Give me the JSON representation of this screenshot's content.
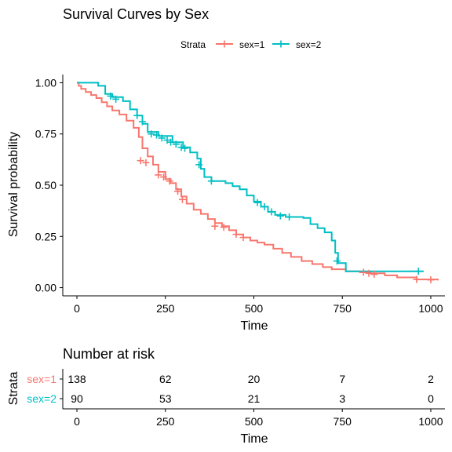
{
  "chart_data": {
    "type": "line",
    "title": "Survival Curves by Sex",
    "xlabel": "Time",
    "ylabel": "Survival probability",
    "xlim": [
      -40,
      1040
    ],
    "ylim": [
      -0.04,
      1.04
    ],
    "x_ticks": [
      "0",
      "250",
      "500",
      "750",
      "1000"
    ],
    "x_tick_values": [
      0,
      250,
      500,
      750,
      1000
    ],
    "y_ticks": [
      "0.00",
      "0.25",
      "0.50",
      "0.75",
      "1.00"
    ],
    "y_tick_values": [
      0,
      0.25,
      0.5,
      0.75,
      1.0
    ],
    "legend": {
      "title": "Strata",
      "position": "top"
    },
    "colors": {
      "sex1": "#F8766D",
      "sex2": "#00BFC4"
    },
    "series": [
      {
        "name": "sex=1",
        "color": "#F8766D",
        "points": [
          [
            0,
            1.0
          ],
          [
            5,
            0.985
          ],
          [
            12,
            0.97
          ],
          [
            25,
            0.955
          ],
          [
            40,
            0.94
          ],
          [
            55,
            0.925
          ],
          [
            70,
            0.905
          ],
          [
            85,
            0.885
          ],
          [
            100,
            0.865
          ],
          [
            120,
            0.845
          ],
          [
            140,
            0.815
          ],
          [
            160,
            0.78
          ],
          [
            175,
            0.735
          ],
          [
            185,
            0.68
          ],
          [
            200,
            0.64
          ],
          [
            215,
            0.6
          ],
          [
            230,
            0.565
          ],
          [
            250,
            0.53
          ],
          [
            265,
            0.51
          ],
          [
            280,
            0.48
          ],
          [
            295,
            0.445
          ],
          [
            310,
            0.41
          ],
          [
            330,
            0.38
          ],
          [
            350,
            0.36
          ],
          [
            370,
            0.335
          ],
          [
            390,
            0.315
          ],
          [
            410,
            0.3
          ],
          [
            430,
            0.28
          ],
          [
            450,
            0.26
          ],
          [
            470,
            0.245
          ],
          [
            490,
            0.23
          ],
          [
            510,
            0.22
          ],
          [
            530,
            0.21
          ],
          [
            555,
            0.19
          ],
          [
            580,
            0.17
          ],
          [
            605,
            0.15
          ],
          [
            635,
            0.13
          ],
          [
            665,
            0.115
          ],
          [
            695,
            0.1
          ],
          [
            720,
            0.09
          ],
          [
            760,
            0.08
          ],
          [
            800,
            0.075
          ],
          [
            830,
            0.07
          ],
          [
            870,
            0.06
          ],
          [
            905,
            0.05
          ],
          [
            960,
            0.04
          ],
          [
            1020,
            0.035
          ]
        ],
        "censor": [
          [
            180,
            0.62
          ],
          [
            195,
            0.61
          ],
          [
            230,
            0.55
          ],
          [
            245,
            0.54
          ],
          [
            262,
            0.52
          ],
          [
            285,
            0.47
          ],
          [
            298,
            0.43
          ],
          [
            390,
            0.3
          ],
          [
            415,
            0.295
          ],
          [
            450,
            0.26
          ],
          [
            470,
            0.245
          ],
          [
            810,
            0.075
          ],
          [
            825,
            0.07
          ],
          [
            840,
            0.065
          ],
          [
            960,
            0.04
          ],
          [
            1000,
            0.038
          ]
        ]
      },
      {
        "name": "sex=2",
        "color": "#00BFC4",
        "points": [
          [
            0,
            1.0
          ],
          [
            60,
            0.985
          ],
          [
            80,
            0.945
          ],
          [
            100,
            0.93
          ],
          [
            130,
            0.91
          ],
          [
            150,
            0.87
          ],
          [
            170,
            0.84
          ],
          [
            185,
            0.8
          ],
          [
            200,
            0.76
          ],
          [
            230,
            0.74
          ],
          [
            270,
            0.71
          ],
          [
            300,
            0.685
          ],
          [
            320,
            0.66
          ],
          [
            340,
            0.63
          ],
          [
            350,
            0.58
          ],
          [
            360,
            0.54
          ],
          [
            380,
            0.52
          ],
          [
            420,
            0.51
          ],
          [
            440,
            0.495
          ],
          [
            460,
            0.48
          ],
          [
            480,
            0.45
          ],
          [
            500,
            0.42
          ],
          [
            520,
            0.395
          ],
          [
            540,
            0.37
          ],
          [
            560,
            0.355
          ],
          [
            590,
            0.345
          ],
          [
            640,
            0.34
          ],
          [
            660,
            0.31
          ],
          [
            680,
            0.29
          ],
          [
            700,
            0.27
          ],
          [
            720,
            0.23
          ],
          [
            730,
            0.17
          ],
          [
            738,
            0.12
          ],
          [
            760,
            0.08
          ],
          [
            980,
            0.08
          ]
        ],
        "censor": [
          [
            95,
            0.935
          ],
          [
            110,
            0.92
          ],
          [
            170,
            0.84
          ],
          [
            185,
            0.81
          ],
          [
            210,
            0.75
          ],
          [
            225,
            0.745
          ],
          [
            240,
            0.73
          ],
          [
            255,
            0.72
          ],
          [
            265,
            0.71
          ],
          [
            280,
            0.7
          ],
          [
            295,
            0.685
          ],
          [
            305,
            0.68
          ],
          [
            345,
            0.6
          ],
          [
            380,
            0.52
          ],
          [
            510,
            0.415
          ],
          [
            530,
            0.395
          ],
          [
            550,
            0.37
          ],
          [
            575,
            0.35
          ],
          [
            600,
            0.345
          ],
          [
            735,
            0.13
          ],
          [
            965,
            0.08
          ]
        ]
      }
    ]
  },
  "risk_table": {
    "title": "Number at risk",
    "ylabel": "Strata",
    "xlabel": "Time",
    "x_ticks": [
      "0",
      "250",
      "500",
      "750",
      "1000"
    ],
    "times": [
      0,
      250,
      500,
      750,
      1000
    ],
    "rows": [
      {
        "label": "sex=1",
        "color": "#F8766D",
        "counts": [
          "138",
          "62",
          "20",
          "7",
          "2"
        ]
      },
      {
        "label": "sex=2",
        "color": "#00BFC4",
        "counts": [
          "90",
          "53",
          "21",
          "3",
          "0"
        ]
      }
    ]
  }
}
